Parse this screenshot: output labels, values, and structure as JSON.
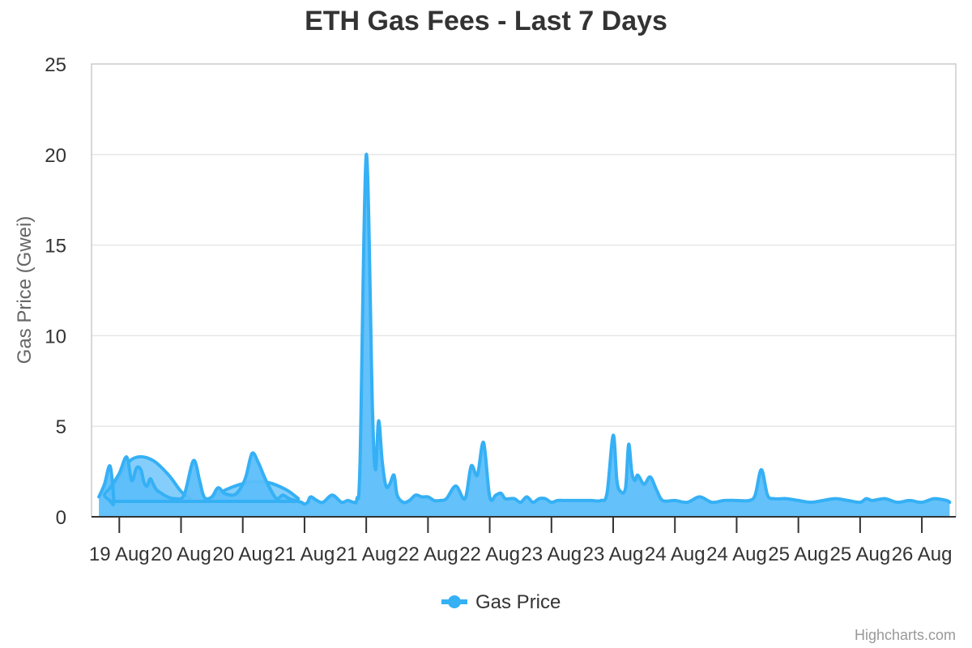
{
  "chart_data": {
    "type": "area",
    "title": "ETH Gas Fees - Last 7 Days",
    "ylabel": "Gas Price (Gwei)",
    "xlabel": "",
    "ylim": [
      0,
      25
    ],
    "yticks": [
      0,
      5,
      10,
      15,
      20,
      25
    ],
    "xlim": [
      -0.45,
      13.55
    ],
    "xtick_labels": [
      "19 Aug",
      "20 Aug",
      "20 Aug",
      "21 Aug",
      "21 Aug",
      "22 Aug",
      "22 Aug",
      "23 Aug",
      "23 Aug",
      "24 Aug",
      "24 Aug",
      "25 Aug",
      "25 Aug",
      "26 Aug"
    ],
    "grid": true,
    "legend_position": "bottom-center",
    "color": "#35b0f5",
    "fill_color": "#5cbefa",
    "series": [
      {
        "name": "Gas Price",
        "x": [
          -0.33,
          -0.24,
          -0.15,
          -0.09,
          -0.15,
          -0.24,
          -0.15,
          0.0,
          0.12,
          0.2,
          0.28,
          0.35,
          0.4,
          0.45,
          0.5,
          0.55,
          0.6,
          0.68,
          0.78,
          0.9,
          1.05,
          1.2,
          1.3,
          1.35,
          1.4,
          1.5,
          1.6,
          1.7,
          1.85,
          1.95,
          2.05,
          2.15,
          2.25,
          2.35,
          2.45,
          2.55,
          2.65,
          2.75,
          2.85,
          2.95,
          3.0,
          3.05,
          3.1,
          3.2,
          3.3,
          3.45,
          3.6,
          3.7,
          3.8,
          3.85,
          3.9,
          4.0,
          4.1,
          4.15,
          4.2,
          4.26,
          4.32,
          4.38,
          4.45,
          4.5,
          4.6,
          4.7,
          4.8,
          4.9,
          5.0,
          5.1,
          5.2,
          5.3,
          5.45,
          5.6,
          5.7,
          5.8,
          5.9,
          6.0,
          6.1,
          6.18,
          6.25,
          6.32,
          6.4,
          6.5,
          6.6,
          6.7,
          6.8,
          6.9,
          7.0,
          7.1,
          7.2,
          7.35,
          7.5,
          7.65,
          7.8,
          7.9,
          8.0,
          8.06,
          8.12,
          8.2,
          8.25,
          8.3,
          8.35,
          8.4,
          8.5,
          8.6,
          8.7,
          8.8,
          9.0,
          9.2,
          9.4,
          9.6,
          9.8,
          10.0,
          10.2,
          10.3,
          10.4,
          10.5,
          10.6,
          10.8,
          11.0,
          11.2,
          11.4,
          11.6,
          11.8,
          12.0,
          12.1,
          12.2,
          12.4,
          12.6,
          12.8,
          13.0,
          13.2,
          13.4,
          13.45
        ],
        "values": [
          1.1,
          1.8,
          2.8,
          0.8,
          0.9,
          1.2,
          1.6,
          2.4,
          3.3,
          2.0,
          2.7,
          2.6,
          1.9,
          1.7,
          2.1,
          1.8,
          1.5,
          1.3,
          1.1,
          1.0,
          1.2,
          3.1,
          2.0,
          1.3,
          1.0,
          1.1,
          1.6,
          1.3,
          1.2,
          1.5,
          2.2,
          3.5,
          3.0,
          2.2,
          1.5,
          1.0,
          1.2,
          1.0,
          0.9,
          0.8,
          0.7,
          0.8,
          1.1,
          0.9,
          0.8,
          1.2,
          0.8,
          0.9,
          0.8,
          1.0,
          3.0,
          20.0,
          6.0,
          2.6,
          5.3,
          3.0,
          1.7,
          1.8,
          2.3,
          1.2,
          0.8,
          0.9,
          1.2,
          1.1,
          1.1,
          0.9,
          0.9,
          1.0,
          1.7,
          1.0,
          2.8,
          2.3,
          4.1,
          1.1,
          1.2,
          1.3,
          1.0,
          1.0,
          1.0,
          0.8,
          1.1,
          0.8,
          1.0,
          1.0,
          0.8,
          0.9,
          0.9,
          0.9,
          0.9,
          0.9,
          0.9,
          1.3,
          4.5,
          2.0,
          1.4,
          1.6,
          4.0,
          2.5,
          2.0,
          2.3,
          1.8,
          2.2,
          1.5,
          0.9,
          0.9,
          0.8,
          1.1,
          0.8,
          0.9,
          0.9,
          0.9,
          1.2,
          2.6,
          1.2,
          1.0,
          1.0,
          0.9,
          0.8,
          0.9,
          1.0,
          0.9,
          0.8,
          1.0,
          0.9,
          1.0,
          0.8,
          0.9,
          0.8,
          1.0,
          0.9,
          0.8
        ]
      }
    ],
    "overlay_curves": [
      {
        "x": [
          -0.15,
          0.1,
          0.3,
          0.55,
          0.8,
          1.0,
          1.15
        ],
        "values": [
          1.2,
          2.8,
          3.3,
          3.1,
          2.3,
          1.4,
          1.0
        ]
      },
      {
        "x": [
          1.5,
          1.8,
          2.1,
          2.4,
          2.7,
          2.9
        ],
        "values": [
          1.1,
          1.6,
          1.9,
          1.9,
          1.5,
          1.0
        ]
      }
    ],
    "baseline_value": 0.85,
    "baseline_x": [
      -0.15,
      2.9
    ]
  },
  "legend": {
    "label": "Gas Price"
  },
  "credits": {
    "text": "Highcharts.com"
  }
}
